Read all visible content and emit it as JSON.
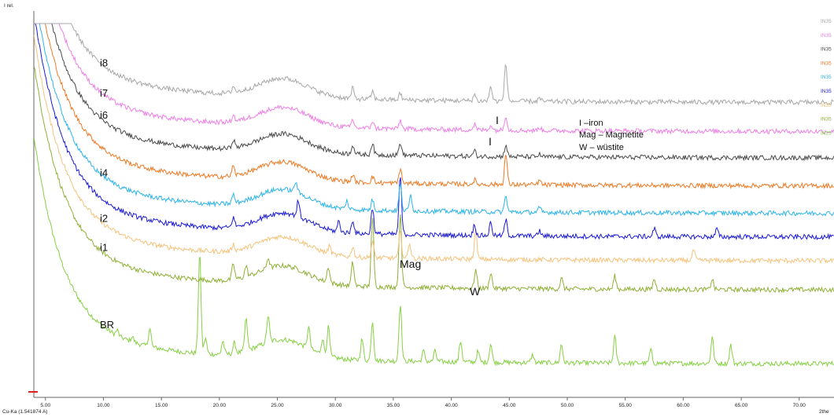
{
  "chart_data": {
    "type": "line",
    "ylabel": "I rel.",
    "xlabel": "2the",
    "wavelength_label": "Cu-Ka (1.541874 A)",
    "xlim": [
      4,
      73
    ],
    "x_ticks": [
      "5.00",
      "10.00",
      "15.00",
      "20.00",
      "25.00",
      "30.00",
      "35.00",
      "40.00",
      "45.00",
      "50.00",
      "55.00",
      "60.00",
      "65.00",
      "70.00"
    ],
    "x_tick_values": [
      5,
      10,
      15,
      20,
      25,
      30,
      35,
      40,
      45,
      50,
      55,
      60,
      65,
      70
    ],
    "legend_entries": [
      "IN35",
      "IN35",
      "IN35",
      "IN35",
      "IN35",
      "IN35",
      "IN35",
      "IN35",
      "IN25"
    ],
    "annotations": {
      "iron_1": "I",
      "iron_2": "I",
      "magnetite": "Mag",
      "wustite": "W",
      "key_iron": "I –iron",
      "key_magnetite": "Mag – Magnetite",
      "key_wustite": "W –  wüstite"
    },
    "series": [
      {
        "label": "i8",
        "color": "#a8a8a8",
        "offset": 0.305,
        "legend_index": 0,
        "peaks": [
          [
            21.2,
            0.012
          ],
          [
            31.5,
            0.02
          ],
          [
            33.2,
            0.015
          ],
          [
            35.6,
            0.012
          ],
          [
            42.0,
            0.012
          ],
          [
            43.4,
            0.028
          ],
          [
            44.7,
            0.072
          ],
          [
            47.6,
            0.006
          ]
        ]
      },
      {
        "label": "i7",
        "color": "#ee7fe6",
        "offset": 0.25,
        "legend_index": 1,
        "peaks": [
          [
            21.2,
            0.012
          ],
          [
            31.5,
            0.015
          ],
          [
            33.2,
            0.014
          ],
          [
            35.6,
            0.016
          ],
          [
            42.0,
            0.01
          ],
          [
            43.4,
            0.01
          ],
          [
            44.7,
            0.028
          ],
          [
            47.6,
            0.006
          ]
        ]
      },
      {
        "label": "i6",
        "color": "#4a4a4a",
        "offset": 0.2,
        "legend_index": 2,
        "peaks": [
          [
            21.2,
            0.016
          ],
          [
            31.5,
            0.018
          ],
          [
            33.2,
            0.022
          ],
          [
            35.6,
            0.024
          ],
          [
            42.0,
            0.01
          ],
          [
            44.7,
            0.022
          ],
          [
            47.6,
            0.005
          ]
        ]
      },
      {
        "label": "",
        "color": "#ee7a25",
        "offset": 0.147,
        "legend_index": 3,
        "peaks": [
          [
            21.2,
            0.018
          ],
          [
            31.5,
            0.014
          ],
          [
            33.2,
            0.012
          ],
          [
            35.6,
            0.028
          ],
          [
            42.0,
            0.008
          ],
          [
            44.7,
            0.058
          ],
          [
            47.6,
            0.008
          ]
        ]
      },
      {
        "label": "i4",
        "color": "#2db4ea",
        "offset": 0.095,
        "legend_index": 4,
        "peaks": [
          [
            21.2,
            0.016
          ],
          [
            26.6,
            0.02
          ],
          [
            31.0,
            0.015
          ],
          [
            33.2,
            0.02
          ],
          [
            35.6,
            0.05
          ],
          [
            36.5,
            0.03
          ],
          [
            44.7,
            0.03
          ],
          [
            47.6,
            0.008
          ]
        ]
      },
      {
        "label": "",
        "color": "#1a1ad8",
        "offset": 0.05,
        "legend_index": 5,
        "peaks": [
          [
            21.2,
            0.018
          ],
          [
            26.8,
            0.03
          ],
          [
            30.3,
            0.02
          ],
          [
            31.5,
            0.025
          ],
          [
            33.2,
            0.05
          ],
          [
            35.6,
            0.11
          ],
          [
            42.0,
            0.02
          ],
          [
            43.4,
            0.025
          ],
          [
            44.7,
            0.03
          ],
          [
            47.6,
            0.01
          ],
          [
            57.5,
            0.015
          ],
          [
            62.9,
            0.015
          ]
        ]
      },
      {
        "label": "i2",
        "color": "#f5c37c",
        "offset": 0.005,
        "legend_index": 6,
        "peaks": [
          [
            21.2,
            0.012
          ],
          [
            29.5,
            0.015
          ],
          [
            31.5,
            0.02
          ],
          [
            33.2,
            0.03
          ],
          [
            35.6,
            0.05
          ],
          [
            36.4,
            0.03
          ],
          [
            42.1,
            0.055
          ],
          [
            60.9,
            0.02
          ]
        ]
      },
      {
        "label": "i1",
        "color": "#8fb035",
        "offset": -0.05,
        "legend_index": 7,
        "peaks": [
          [
            21.2,
            0.03
          ],
          [
            22.3,
            0.02
          ],
          [
            24.2,
            0.02
          ],
          [
            29.4,
            0.03
          ],
          [
            31.5,
            0.045
          ],
          [
            33.2,
            0.13
          ],
          [
            35.6,
            0.14
          ],
          [
            42.1,
            0.035
          ],
          [
            43.4,
            0.03
          ],
          [
            49.5,
            0.02
          ],
          [
            54.1,
            0.025
          ],
          [
            57.5,
            0.02
          ],
          [
            62.5,
            0.02
          ]
        ]
      },
      {
        "label": "BR",
        "color": "#86d044",
        "offset": -0.19,
        "legend_index": 8,
        "peaks": [
          [
            11.2,
            0.01
          ],
          [
            12.5,
            0.01
          ],
          [
            14.0,
            0.035
          ],
          [
            18.3,
            0.19
          ],
          [
            18.8,
            0.03
          ],
          [
            20.3,
            0.025
          ],
          [
            21.3,
            0.02
          ],
          [
            22.3,
            0.06
          ],
          [
            24.2,
            0.05
          ],
          [
            27.7,
            0.04
          ],
          [
            28.9,
            0.03
          ],
          [
            29.4,
            0.055
          ],
          [
            32.3,
            0.04
          ],
          [
            33.2,
            0.075
          ],
          [
            35.6,
            0.11
          ],
          [
            37.6,
            0.02
          ],
          [
            38.6,
            0.02
          ],
          [
            40.8,
            0.04
          ],
          [
            42.3,
            0.02
          ],
          [
            43.4,
            0.035
          ],
          [
            47.0,
            0.015
          ],
          [
            49.5,
            0.035
          ],
          [
            54.1,
            0.05
          ],
          [
            57.2,
            0.025
          ],
          [
            62.5,
            0.05
          ],
          [
            64.1,
            0.035
          ]
        ]
      }
    ]
  }
}
